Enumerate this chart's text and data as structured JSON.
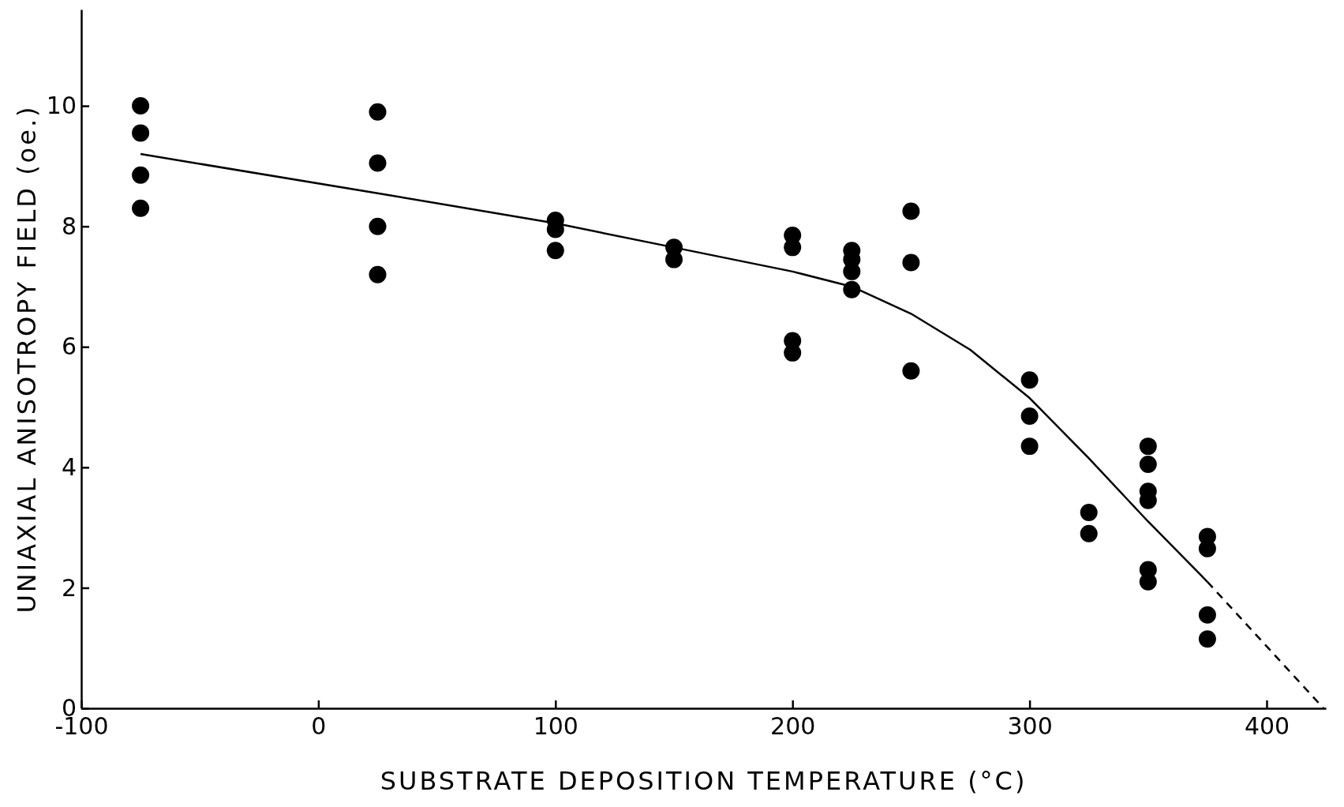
{
  "chart_data": {
    "type": "scatter",
    "xlabel": "SUBSTRATE DEPOSITION TEMPERATURE (°C)",
    "ylabel": "UNIAXIAL ANISOTROPY FIELD (oe.)",
    "xlim": [
      -100,
      425
    ],
    "xticks": [
      -100,
      0,
      100,
      200,
      300,
      400
    ],
    "ylim": [
      0,
      11.6
    ],
    "yticks": [
      0,
      2,
      4,
      6,
      8,
      10
    ],
    "marker": "circle",
    "grid": false,
    "series": [
      {
        "color": "#000000",
        "x": [
          -75,
          -75,
          -75,
          -75,
          25,
          25,
          25,
          25,
          100,
          100,
          100,
          150,
          150,
          200,
          200,
          200,
          200,
          225,
          225,
          225,
          225,
          250,
          250,
          250,
          300,
          300,
          300,
          325,
          325,
          350,
          350,
          350,
          350,
          350,
          350,
          375,
          375,
          375,
          375
        ],
        "values": [
          10.0,
          9.55,
          8.85,
          8.3,
          9.9,
          9.05,
          8.0,
          7.2,
          8.1,
          7.95,
          7.6,
          7.65,
          7.45,
          7.85,
          7.65,
          6.1,
          5.9,
          7.6,
          7.45,
          7.25,
          6.95,
          8.25,
          7.4,
          5.6,
          5.45,
          4.85,
          4.35,
          3.25,
          2.9,
          4.35,
          4.05,
          3.6,
          3.45,
          2.3,
          2.1,
          2.85,
          2.65,
          1.55,
          1.15
        ]
      },
      {
        "type": "line",
        "color": "#000000",
        "line_style": "solid",
        "marker": "none",
        "x": [
          -75,
          25,
          100,
          150,
          200,
          225,
          250,
          275,
          300,
          325,
          350,
          375
        ],
        "values": [
          9.2,
          8.55,
          8.05,
          7.65,
          7.25,
          7.0,
          6.55,
          5.95,
          5.15,
          4.15,
          3.1,
          2.1
        ]
      },
      {
        "type": "line",
        "color": "#000000",
        "line_style": "dashed",
        "marker": "none",
        "x": [
          375,
          424
        ],
        "values": [
          2.1,
          0
        ]
      }
    ]
  }
}
